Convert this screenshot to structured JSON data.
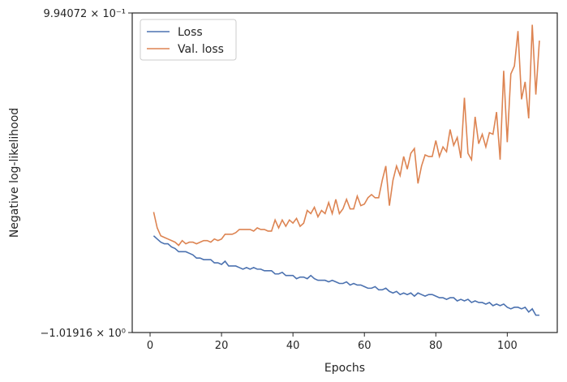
{
  "chart_data": {
    "type": "line",
    "x_label": "Epochs",
    "y_label": "Negative log-likelihood",
    "x": [
      1,
      2,
      3,
      4,
      5,
      6,
      7,
      8,
      9,
      10,
      11,
      12,
      13,
      14,
      15,
      16,
      17,
      18,
      19,
      20,
      21,
      22,
      23,
      24,
      25,
      26,
      27,
      28,
      29,
      30,
      31,
      32,
      33,
      34,
      35,
      36,
      37,
      38,
      39,
      40,
      41,
      42,
      43,
      44,
      45,
      46,
      47,
      48,
      49,
      50,
      51,
      52,
      53,
      54,
      55,
      56,
      57,
      58,
      59,
      60,
      61,
      62,
      63,
      64,
      65,
      66,
      67,
      68,
      69,
      70,
      71,
      72,
      73,
      74,
      75,
      76,
      77,
      78,
      79,
      80,
      81,
      82,
      83,
      84,
      85,
      86,
      87,
      88,
      89,
      90,
      91,
      92,
      93,
      94,
      95,
      96,
      97,
      98,
      99,
      100,
      101,
      102,
      103,
      104,
      105,
      106,
      107,
      108,
      109
    ],
    "series": [
      {
        "name": "Loss",
        "color": "#4c72b0",
        "values": [
          -0.41,
          -0.43,
          -0.45,
          -0.46,
          -0.46,
          -0.48,
          -0.49,
          -0.51,
          -0.51,
          -0.51,
          -0.52,
          -0.53,
          -0.55,
          -0.55,
          -0.56,
          -0.56,
          -0.56,
          -0.58,
          -0.58,
          -0.59,
          -0.57,
          -0.6,
          -0.6,
          -0.6,
          -0.61,
          -0.62,
          -0.61,
          -0.62,
          -0.61,
          -0.62,
          -0.62,
          -0.63,
          -0.63,
          -0.63,
          -0.65,
          -0.65,
          -0.64,
          -0.66,
          -0.66,
          -0.66,
          -0.68,
          -0.67,
          -0.67,
          -0.68,
          -0.66,
          -0.68,
          -0.69,
          -0.69,
          -0.69,
          -0.7,
          -0.69,
          -0.7,
          -0.71,
          -0.71,
          -0.7,
          -0.72,
          -0.71,
          -0.72,
          -0.72,
          -0.73,
          -0.74,
          -0.74,
          -0.73,
          -0.75,
          -0.75,
          -0.74,
          -0.76,
          -0.77,
          -0.76,
          -0.78,
          -0.77,
          -0.78,
          -0.77,
          -0.79,
          -0.77,
          -0.78,
          -0.79,
          -0.78,
          -0.78,
          -0.79,
          -0.8,
          -0.8,
          -0.81,
          -0.8,
          -0.8,
          -0.82,
          -0.81,
          -0.82,
          -0.81,
          -0.83,
          -0.82,
          -0.83,
          -0.83,
          -0.84,
          -0.83,
          -0.85,
          -0.84,
          -0.85,
          -0.84,
          -0.86,
          -0.87,
          -0.86,
          -0.86,
          -0.87,
          -0.86,
          -0.89,
          -0.87,
          -0.91,
          -0.91
        ]
      },
      {
        "name": "Val. loss",
        "color": "#dd8452",
        "values": [
          -0.26,
          -0.36,
          -0.41,
          -0.42,
          -0.43,
          -0.44,
          -0.45,
          -0.47,
          -0.44,
          -0.46,
          -0.45,
          -0.45,
          -0.46,
          -0.45,
          -0.44,
          -0.44,
          -0.45,
          -0.43,
          -0.44,
          -0.43,
          -0.4,
          -0.4,
          -0.4,
          -0.39,
          -0.37,
          -0.37,
          -0.37,
          -0.37,
          -0.38,
          -0.36,
          -0.37,
          -0.37,
          -0.38,
          -0.38,
          -0.31,
          -0.36,
          -0.31,
          -0.35,
          -0.31,
          -0.33,
          -0.3,
          -0.35,
          -0.33,
          -0.25,
          -0.27,
          -0.23,
          -0.29,
          -0.25,
          -0.27,
          -0.2,
          -0.27,
          -0.18,
          -0.27,
          -0.24,
          -0.18,
          -0.24,
          -0.24,
          -0.16,
          -0.22,
          -0.21,
          -0.17,
          -0.15,
          -0.17,
          -0.17,
          -0.06,
          0.03,
          -0.22,
          -0.06,
          0.03,
          -0.03,
          0.09,
          0.01,
          0.11,
          0.14,
          -0.08,
          0.03,
          0.1,
          0.09,
          0.09,
          0.19,
          0.09,
          0.15,
          0.12,
          0.26,
          0.16,
          0.21,
          0.08,
          0.46,
          0.11,
          0.07,
          0.34,
          0.17,
          0.23,
          0.15,
          0.24,
          0.23,
          0.37,
          0.07,
          0.63,
          0.18,
          0.61,
          0.66,
          0.88,
          0.45,
          0.56,
          0.33,
          0.92,
          0.48,
          0.82
        ]
      }
    ],
    "xlim": [
      -5,
      114
    ],
    "xticks": [
      0,
      20,
      40,
      60,
      80,
      100
    ],
    "ylim": [
      -1.01916,
      0.994072
    ],
    "yticks": [
      {
        "value": -1.01916,
        "label": "−1.01916 × 10⁰"
      },
      {
        "value": 0.994072,
        "label": "9.94072 × 10⁻¹"
      }
    ],
    "legend": "upper left"
  }
}
